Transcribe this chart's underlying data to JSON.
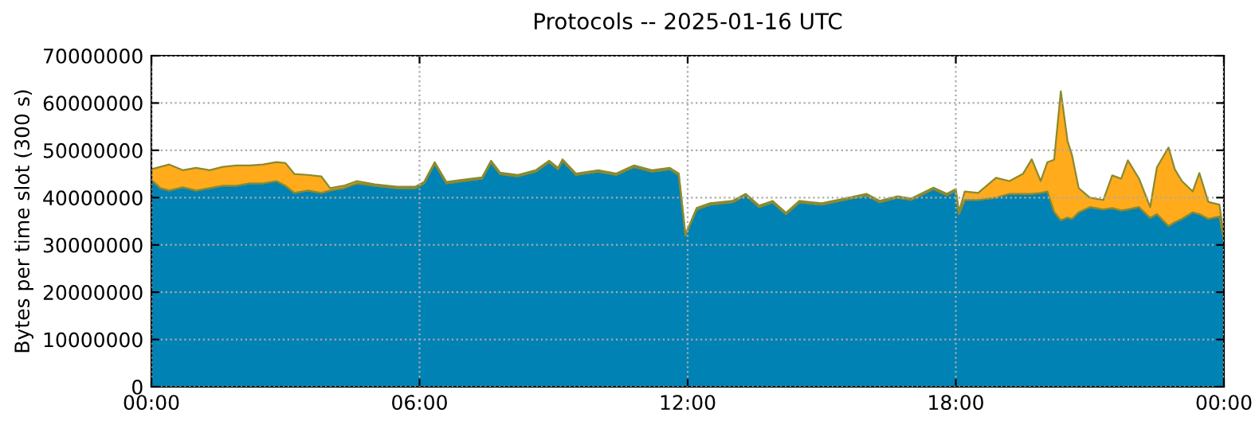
{
  "chart_data": {
    "type": "area",
    "title": "Protocols -- 2025-01-16 UTC",
    "ylabel": "Bytes per time slot (300 s)",
    "stacked": true,
    "grid": true,
    "x": [
      0.0,
      0.2,
      0.4,
      0.7,
      1.0,
      1.3,
      1.6,
      1.9,
      2.2,
      2.5,
      2.8,
      3.0,
      3.2,
      3.5,
      3.8,
      4.0,
      4.3,
      4.6,
      5.0,
      5.5,
      5.9,
      6.1,
      6.34,
      6.6,
      7.0,
      7.4,
      7.6,
      7.8,
      8.2,
      8.6,
      8.9,
      9.1,
      9.2,
      9.5,
      10.0,
      10.4,
      10.8,
      11.2,
      11.6,
      11.8,
      11.95,
      12.2,
      12.5,
      13.0,
      13.3,
      13.6,
      13.9,
      14.2,
      14.5,
      15.0,
      15.5,
      16.0,
      16.3,
      16.7,
      17.0,
      17.5,
      17.8,
      18.0,
      18.07,
      18.2,
      18.5,
      18.9,
      19.2,
      19.5,
      19.7,
      19.9,
      20.05,
      20.2,
      20.35,
      20.5,
      20.6,
      20.75,
      21.0,
      21.3,
      21.5,
      21.7,
      21.85,
      22.1,
      22.35,
      22.5,
      22.76,
      22.9,
      23.06,
      23.3,
      23.45,
      23.65,
      23.9,
      24.0
    ],
    "series": [
      {
        "color": "#0082b4",
        "values": [
          43800000,
          42000000,
          41500000,
          42200000,
          41500000,
          42000000,
          42500000,
          42500000,
          43000000,
          43000000,
          43500000,
          42500000,
          41000000,
          41500000,
          41000000,
          41500000,
          42000000,
          43000000,
          42500000,
          42000000,
          42000000,
          43000000,
          47200000,
          43000000,
          43500000,
          44000000,
          47500000,
          45000000,
          44500000,
          45500000,
          47500000,
          46000000,
          47800000,
          44800000,
          45500000,
          44800000,
          46500000,
          45500000,
          46000000,
          44800000,
          32000000,
          37500000,
          38500000,
          39000000,
          40500000,
          38000000,
          39000000,
          36500000,
          39000000,
          38500000,
          39500000,
          40500000,
          39000000,
          40000000,
          39500000,
          41800000,
          40500000,
          41500000,
          36500000,
          39500000,
          39500000,
          40000000,
          40800000,
          40800000,
          40800000,
          41000000,
          41300000,
          37000000,
          35200000,
          35800000,
          35500000,
          36900000,
          38000000,
          37500000,
          37800000,
          37300000,
          37500000,
          38000000,
          35700000,
          36500000,
          34000000,
          34800000,
          35500000,
          36900000,
          36500000,
          35500000,
          36000000,
          31000000
        ]
      },
      {
        "color": "#ffab1c",
        "values": [
          2200000,
          4500000,
          5500000,
          3600000,
          4800000,
          3800000,
          4000000,
          4300000,
          3800000,
          4000000,
          4000000,
          4800000,
          4000000,
          3300000,
          3500000,
          500000,
          500000,
          500000,
          300000,
          300000,
          300000,
          300000,
          300000,
          300000,
          300000,
          300000,
          300000,
          300000,
          300000,
          300000,
          300000,
          300000,
          300000,
          300000,
          300000,
          300000,
          300000,
          300000,
          300000,
          300000,
          200000,
          300000,
          300000,
          300000,
          300000,
          300000,
          300000,
          300000,
          300000,
          300000,
          300000,
          300000,
          300000,
          300000,
          300000,
          300000,
          300000,
          300000,
          500000,
          1800000,
          1500000,
          4200000,
          2700000,
          4200000,
          7300000,
          2500000,
          6200000,
          11000000,
          27300000,
          16200000,
          13500000,
          5100000,
          2000000,
          2000000,
          6900000,
          6700000,
          10400000,
          6000000,
          2300000,
          9900000,
          16600000,
          11200000,
          8000000,
          4400000,
          8700000,
          3600000,
          2500000,
          500000
        ]
      }
    ],
    "xlim": [
      0,
      24
    ],
    "xticks": [
      {
        "value": 0,
        "label": "00:00"
      },
      {
        "value": 6,
        "label": "06:00"
      },
      {
        "value": 12,
        "label": "12:00"
      },
      {
        "value": 18,
        "label": "18:00"
      },
      {
        "value": 24,
        "label": "00:00"
      }
    ],
    "ylim": [
      0,
      70000000
    ],
    "yticks": [
      0,
      10000000,
      20000000,
      30000000,
      40000000,
      50000000,
      60000000,
      70000000
    ]
  }
}
